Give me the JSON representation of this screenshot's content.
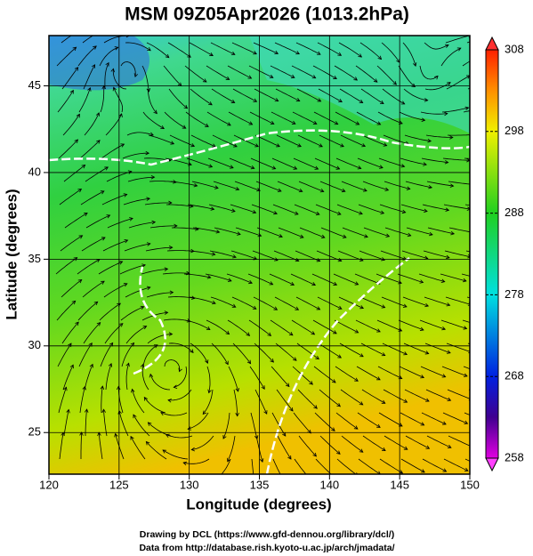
{
  "title": "MSM 09Z05Apr2026 (1013.2hPa)",
  "x_axis": {
    "label": "Longitude (degrees)",
    "lim": [
      120,
      150
    ],
    "ticks": [
      120,
      125,
      130,
      135,
      140,
      145,
      150
    ]
  },
  "y_axis": {
    "label": "Latitude  (degrees)",
    "lim": [
      22.6,
      47.9
    ],
    "ticks": [
      25,
      30,
      35,
      40,
      45
    ]
  },
  "colorbar": {
    "lim": [
      258,
      308
    ],
    "ticks": [
      258,
      268,
      278,
      288,
      298,
      308
    ]
  },
  "footer": [
    "Drawing by DCL (https://www.gfd-dennou.org/library/dcl/)",
    "Data from http://database.rish.kyoto-u.ac.jp/arch/jmadata/"
  ]
}
